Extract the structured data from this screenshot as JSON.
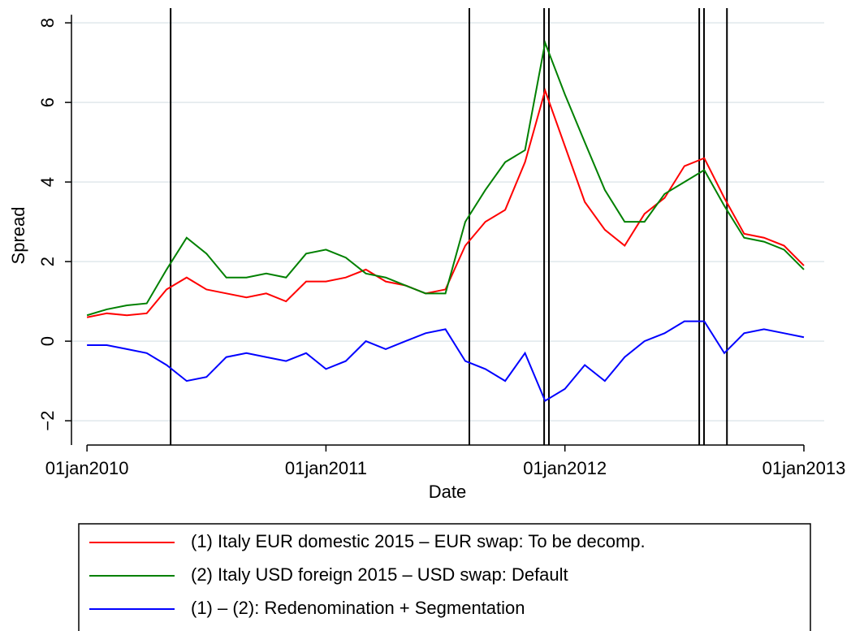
{
  "chart_data": {
    "type": "line",
    "x": [
      2010,
      2010.083,
      2010.167,
      2010.25,
      2010.333,
      2010.417,
      2010.5,
      2010.583,
      2010.667,
      2010.75,
      2010.833,
      2010.917,
      2011,
      2011.083,
      2011.167,
      2011.25,
      2011.333,
      2011.417,
      2011.5,
      2011.583,
      2011.667,
      2011.75,
      2011.833,
      2011.917,
      2012,
      2012.083,
      2012.167,
      2012.25,
      2012.333,
      2012.417,
      2012.5,
      2012.583,
      2012.667,
      2012.75,
      2012.833,
      2012.917,
      2013
    ],
    "series": [
      {
        "name": "(1) Italy EUR domestic 2015 – EUR swap: To be decomp.",
        "color": "#ff0000",
        "values": [
          0.6,
          0.7,
          0.65,
          0.7,
          1.3,
          1.6,
          1.3,
          1.2,
          1.1,
          1.2,
          1.0,
          1.5,
          1.5,
          1.6,
          1.8,
          1.5,
          1.4,
          1.2,
          1.3,
          2.4,
          3.0,
          3.3,
          4.5,
          6.3,
          4.9,
          3.5,
          2.8,
          2.4,
          3.2,
          3.6,
          4.4,
          4.6,
          3.6,
          2.7,
          2.6,
          2.4,
          1.9
        ]
      },
      {
        "name": "(2) Italy USD foreign 2015 – USD swap: Default",
        "color": "#008000",
        "values": [
          0.65,
          0.8,
          0.9,
          0.95,
          1.8,
          2.6,
          2.2,
          1.6,
          1.6,
          1.7,
          1.6,
          2.2,
          2.3,
          2.1,
          1.7,
          1.6,
          1.4,
          1.2,
          1.2,
          3.0,
          3.8,
          4.5,
          4.8,
          7.5,
          6.2,
          5.0,
          3.8,
          3.0,
          3.0,
          3.7,
          4.0,
          4.3,
          3.4,
          2.6,
          2.5,
          2.3,
          1.8
        ]
      },
      {
        "name": "(1) – (2): Redenomination + Segmentation",
        "color": "#0000ff",
        "values": [
          -0.1,
          -0.1,
          -0.2,
          -0.3,
          -0.6,
          -1.0,
          -0.9,
          -0.4,
          -0.3,
          -0.4,
          -0.5,
          -0.3,
          -0.7,
          -0.5,
          0.0,
          -0.2,
          0.0,
          0.2,
          0.3,
          -0.5,
          -0.7,
          -1.0,
          -0.3,
          -1.5,
          -1.2,
          -0.6,
          -1.0,
          -0.4,
          0.0,
          0.2,
          0.5,
          0.5,
          -0.3,
          0.2,
          0.3,
          0.2,
          0.1
        ]
      }
    ],
    "vlines": [
      2010.35,
      2011.6,
      2011.913,
      2011.933,
      2012.562,
      2012.582,
      2012.678
    ],
    "xlim": [
      2009.935,
      2013.085
    ],
    "xticks": [
      {
        "value": 2010,
        "label": "01jan2010"
      },
      {
        "value": 2011,
        "label": "01jan2011"
      },
      {
        "value": 2012,
        "label": "01jan2012"
      },
      {
        "value": 2013,
        "label": "01jan2013"
      }
    ],
    "ylim": [
      -2.61,
      8.37
    ],
    "yticks": [
      {
        "value": -2,
        "label": "−2"
      },
      0,
      2,
      4,
      6,
      8
    ],
    "xlabel": "Date",
    "ylabel": "Spread",
    "grid": true
  }
}
